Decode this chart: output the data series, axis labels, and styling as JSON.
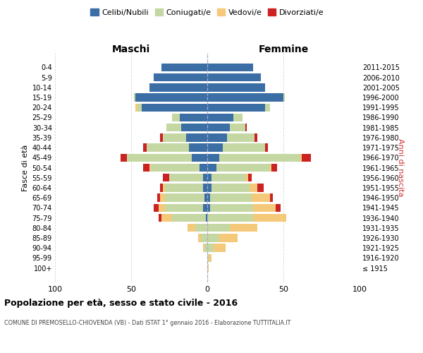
{
  "age_groups": [
    "100+",
    "95-99",
    "90-94",
    "85-89",
    "80-84",
    "75-79",
    "70-74",
    "65-69",
    "60-64",
    "55-59",
    "50-54",
    "45-49",
    "40-44",
    "35-39",
    "30-34",
    "25-29",
    "20-24",
    "15-19",
    "10-14",
    "5-9",
    "0-4"
  ],
  "birth_years": [
    "≤ 1915",
    "1916-1920",
    "1921-1925",
    "1926-1930",
    "1931-1935",
    "1936-1940",
    "1941-1945",
    "1946-1950",
    "1951-1955",
    "1956-1960",
    "1961-1965",
    "1966-1970",
    "1971-1975",
    "1976-1980",
    "1981-1985",
    "1986-1990",
    "1991-1995",
    "1996-2000",
    "2001-2005",
    "2006-2010",
    "2011-2015"
  ],
  "colors": {
    "celibi": "#3a6ea5",
    "coniugati": "#c5d8a4",
    "vedovi": "#f5c97a",
    "divorziati": "#cc2222"
  },
  "maschi": {
    "celibi": [
      0,
      0,
      0,
      0,
      0,
      1,
      3,
      2,
      3,
      3,
      5,
      10,
      12,
      14,
      17,
      18,
      43,
      47,
      38,
      35,
      30
    ],
    "coniugati": [
      0,
      0,
      2,
      4,
      8,
      22,
      25,
      26,
      25,
      22,
      32,
      43,
      28,
      15,
      10,
      5,
      3,
      1,
      0,
      0,
      0
    ],
    "vedovi": [
      0,
      0,
      1,
      2,
      5,
      7,
      4,
      3,
      1,
      0,
      1,
      0,
      0,
      0,
      0,
      0,
      1,
      0,
      0,
      0,
      0
    ],
    "divorziati": [
      0,
      0,
      0,
      0,
      0,
      2,
      3,
      2,
      2,
      4,
      4,
      4,
      2,
      2,
      0,
      0,
      0,
      0,
      0,
      0,
      0
    ]
  },
  "femmine": {
    "celibi": [
      0,
      0,
      0,
      0,
      0,
      0,
      2,
      2,
      3,
      3,
      6,
      8,
      10,
      13,
      15,
      17,
      38,
      50,
      38,
      35,
      30
    ],
    "coniugati": [
      0,
      1,
      4,
      8,
      15,
      30,
      28,
      27,
      25,
      22,
      35,
      53,
      28,
      18,
      10,
      6,
      3,
      1,
      0,
      0,
      0
    ],
    "vedovi": [
      1,
      2,
      8,
      12,
      18,
      22,
      15,
      12,
      5,
      2,
      1,
      1,
      0,
      0,
      0,
      0,
      0,
      0,
      0,
      0,
      0
    ],
    "divorziati": [
      0,
      0,
      0,
      0,
      0,
      0,
      3,
      2,
      4,
      2,
      4,
      6,
      2,
      2,
      1,
      0,
      0,
      0,
      0,
      0,
      0
    ]
  },
  "title": "Popolazione per età, sesso e stato civile - 2016",
  "subtitle": "COMUNE DI PREMOSELLO-CHIOVENDA (VB) - Dati ISTAT 1° gennaio 2016 - Elaborazione TUTTITALIA.IT",
  "ylabel_left": "Fasce di età",
  "ylabel_right": "Anni di nascita",
  "xlabel_maschi": "Maschi",
  "xlabel_femmine": "Femmine",
  "xlim": 100,
  "legend_labels": [
    "Celibi/Nubili",
    "Coniugati/e",
    "Vedovi/e",
    "Divorziati/e"
  ],
  "bg_color": "#ffffff",
  "grid_color": "#cccccc"
}
